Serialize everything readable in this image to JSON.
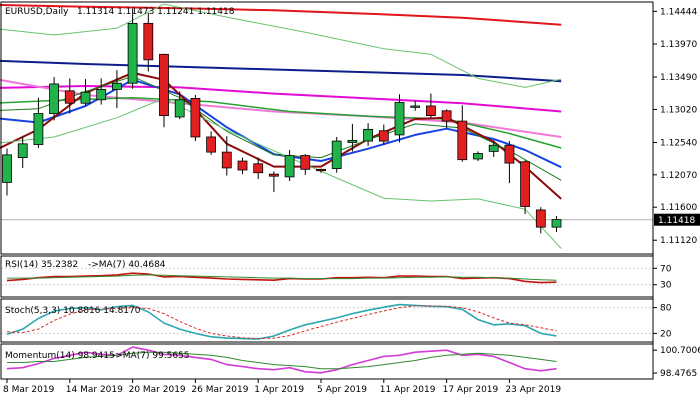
{
  "colors": {
    "bull": "#22b24c",
    "bear": "#e02020",
    "ma_red": "#e3141b",
    "ma_navy": "#0d1f8c",
    "ma_magenta": "#e20bd6",
    "ma_pink": "#f07ad8",
    "ma_green": "#26a32e",
    "ma_fast_blue": "#1742e6",
    "ma_fast_maroon": "#8b0a0a",
    "ma_short_green": "#1e7a1e",
    "bollinger": "#68c46e",
    "rsi_main": "#c81212",
    "rsi_ma": "#2e8b2e",
    "stoch_main": "#2aa6b0",
    "stoch_signal": "#d63030",
    "mom_main": "#d43ad6",
    "mom_ma": "#2e8b2e",
    "grid": "#cfcfcf",
    "frame": "#000000",
    "price_tag_bg": "#000000",
    "price_tag_fg": "#ffffff"
  },
  "chart_data": [
    {
      "type": "candlestick",
      "header": {
        "symbol": "EURUSD,Daily",
        "ohlc": "1.11314 1.11473 1.11241 1.11418"
      },
      "x_labels": [
        {
          "label": "8 Mar 2019",
          "index": 0
        },
        {
          "label": "14 Mar 2019",
          "index": 4
        },
        {
          "label": "20 Mar 2019",
          "index": 8
        },
        {
          "label": "26 Mar 2019",
          "index": 12
        },
        {
          "label": "1 Apr 2019",
          "index": 16
        },
        {
          "label": "5 Apr 2019",
          "index": 20
        },
        {
          "label": "11 Apr 2019",
          "index": 24
        },
        {
          "label": "17 Apr 2019",
          "index": 28
        },
        {
          "label": "23 Apr 2019",
          "index": 32
        }
      ],
      "y_ticks": [
        "1.14444",
        "1.13970",
        "1.13490",
        "1.13020",
        "1.12540",
        "1.12070",
        "1.11600",
        "1.11120"
      ],
      "ylim": [
        1.1092,
        1.1458
      ],
      "last_price": "1.11418",
      "candles": [
        {
          "o": 1.1196,
          "h": 1.1245,
          "l": 1.1177,
          "c": 1.1236
        },
        {
          "o": 1.1232,
          "h": 1.1262,
          "l": 1.1217,
          "c": 1.1252
        },
        {
          "o": 1.1251,
          "h": 1.1319,
          "l": 1.1246,
          "c": 1.1296
        },
        {
          "o": 1.1296,
          "h": 1.1349,
          "l": 1.1286,
          "c": 1.1339
        },
        {
          "o": 1.1329,
          "h": 1.1347,
          "l": 1.1296,
          "c": 1.1311
        },
        {
          "o": 1.1311,
          "h": 1.1346,
          "l": 1.1307,
          "c": 1.1327
        },
        {
          "o": 1.1316,
          "h": 1.1347,
          "l": 1.1309,
          "c": 1.1331
        },
        {
          "o": 1.1331,
          "h": 1.1359,
          "l": 1.1304,
          "c": 1.134
        },
        {
          "o": 1.134,
          "h": 1.1448,
          "l": 1.1332,
          "c": 1.1427
        },
        {
          "o": 1.1427,
          "h": 1.1442,
          "l": 1.1357,
          "c": 1.1374
        },
        {
          "o": 1.1382,
          "h": 1.1383,
          "l": 1.1276,
          "c": 1.1293
        },
        {
          "o": 1.1291,
          "h": 1.1328,
          "l": 1.1288,
          "c": 1.1316
        },
        {
          "o": 1.1318,
          "h": 1.1323,
          "l": 1.1256,
          "c": 1.1262
        },
        {
          "o": 1.1262,
          "h": 1.127,
          "l": 1.1236,
          "c": 1.124
        },
        {
          "o": 1.124,
          "h": 1.1263,
          "l": 1.1206,
          "c": 1.1217
        },
        {
          "o": 1.1227,
          "h": 1.1232,
          "l": 1.1208,
          "c": 1.1214
        },
        {
          "o": 1.1223,
          "h": 1.1232,
          "l": 1.1201,
          "c": 1.121
        },
        {
          "o": 1.1208,
          "h": 1.1212,
          "l": 1.1182,
          "c": 1.1205
        },
        {
          "o": 1.1204,
          "h": 1.1243,
          "l": 1.1198,
          "c": 1.1235
        },
        {
          "o": 1.1235,
          "h": 1.1237,
          "l": 1.1207,
          "c": 1.1215
        },
        {
          "o": 1.1215,
          "h": 1.1216,
          "l": 1.121,
          "c": 1.1213
        },
        {
          "o": 1.1216,
          "h": 1.1262,
          "l": 1.121,
          "c": 1.1256
        },
        {
          "o": 1.1254,
          "h": 1.1281,
          "l": 1.1241,
          "c": 1.1257
        },
        {
          "o": 1.1256,
          "h": 1.1282,
          "l": 1.1249,
          "c": 1.1273
        },
        {
          "o": 1.1271,
          "h": 1.128,
          "l": 1.1251,
          "c": 1.1256
        },
        {
          "o": 1.1265,
          "h": 1.1324,
          "l": 1.1254,
          "c": 1.1312
        },
        {
          "o": 1.1305,
          "h": 1.1314,
          "l": 1.13,
          "c": 1.1307
        },
        {
          "o": 1.1307,
          "h": 1.1325,
          "l": 1.129,
          "c": 1.1293
        },
        {
          "o": 1.13,
          "h": 1.1302,
          "l": 1.1275,
          "c": 1.1285
        },
        {
          "o": 1.1285,
          "h": 1.1308,
          "l": 1.1226,
          "c": 1.1229
        },
        {
          "o": 1.123,
          "h": 1.1241,
          "l": 1.1227,
          "c": 1.1238
        },
        {
          "o": 1.1241,
          "h": 1.1257,
          "l": 1.1233,
          "c": 1.125
        },
        {
          "o": 1.125,
          "h": 1.1256,
          "l": 1.1195,
          "c": 1.1224
        },
        {
          "o": 1.1226,
          "h": 1.1228,
          "l": 1.115,
          "c": 1.1161
        },
        {
          "o": 1.1156,
          "h": 1.116,
          "l": 1.1122,
          "c": 1.1131
        },
        {
          "o": 1.1131,
          "h": 1.1147,
          "l": 1.1124,
          "c": 1.1142
        }
      ],
      "moving_averages": [
        {
          "color_key": "ma_red",
          "width": 2,
          "points": [
            [
              -1,
              1.1454
            ],
            [
              5,
              1.1451
            ],
            [
              11,
              1.1449
            ],
            [
              17,
              1.1446
            ],
            [
              23,
              1.1441
            ],
            [
              29,
              1.1435
            ],
            [
              35.3,
              1.1425
            ]
          ]
        },
        {
          "color_key": "ma_navy",
          "width": 2,
          "points": [
            [
              -1,
              1.1373
            ],
            [
              5,
              1.1368
            ],
            [
              11,
              1.1364
            ],
            [
              17,
              1.136
            ],
            [
              23,
              1.1356
            ],
            [
              29,
              1.1352
            ],
            [
              35.3,
              1.1343
            ]
          ]
        },
        {
          "color_key": "ma_magenta",
          "width": 2,
          "points": [
            [
              -1,
              1.1333
            ],
            [
              5,
              1.1336
            ],
            [
              11,
              1.1334
            ],
            [
              17,
              1.1325
            ],
            [
              23,
              1.1318
            ],
            [
              29,
              1.1311
            ],
            [
              35.3,
              1.1299
            ]
          ]
        },
        {
          "color_key": "ma_pink",
          "width": 2,
          "points": [
            [
              -1,
              1.1347
            ],
            [
              5,
              1.1323
            ],
            [
              11,
              1.1311
            ],
            [
              17,
              1.1299
            ],
            [
              23,
              1.1292
            ],
            [
              29,
              1.1283
            ],
            [
              35.3,
              1.1262
            ]
          ]
        },
        {
          "color_key": "ma_green",
          "width": 1.5,
          "points": [
            [
              -1,
              1.1311
            ],
            [
              3,
              1.1315
            ],
            [
              8,
              1.1319
            ],
            [
              13,
              1.1313
            ],
            [
              18,
              1.1299
            ],
            [
              23,
              1.1292
            ],
            [
              28,
              1.1288
            ],
            [
              32,
              1.1267
            ],
            [
              35.3,
              1.1246
            ]
          ]
        },
        {
          "color_key": "ma_fast_blue",
          "width": 2,
          "points": [
            [
              -1,
              1.129
            ],
            [
              2,
              1.1283
            ],
            [
              5,
              1.1307
            ],
            [
              8,
              1.1345
            ],
            [
              11,
              1.1324
            ],
            [
              14,
              1.1276
            ],
            [
              17,
              1.1237
            ],
            [
              20,
              1.1227
            ],
            [
              23,
              1.1245
            ],
            [
              26,
              1.1265
            ],
            [
              28,
              1.1274
            ],
            [
              31,
              1.1259
            ],
            [
              33,
              1.1243
            ],
            [
              35.3,
              1.1218
            ]
          ]
        },
        {
          "color_key": "ma_fast_maroon",
          "width": 2,
          "points": [
            [
              -1,
              1.124
            ],
            [
              2,
              1.1273
            ],
            [
              5,
              1.1326
            ],
            [
              8,
              1.1355
            ],
            [
              10,
              1.1345
            ],
            [
              12,
              1.1302
            ],
            [
              14,
              1.1252
            ],
            [
              17,
              1.1219
            ],
            [
              20,
              1.1219
            ],
            [
              23,
              1.1259
            ],
            [
              26,
              1.1288
            ],
            [
              28,
              1.129
            ],
            [
              31,
              1.1255
            ],
            [
              33,
              1.1219
            ],
            [
              35.3,
              1.1172
            ]
          ]
        },
        {
          "color_key": "ma_short_green",
          "width": 1,
          "points": [
            [
              -1,
              1.13
            ],
            [
              2,
              1.1303
            ],
            [
              5,
              1.1328
            ],
            [
              8,
              1.135
            ],
            [
              11,
              1.1319
            ],
            [
              14,
              1.127
            ],
            [
              17,
              1.1236
            ],
            [
              20,
              1.1232
            ],
            [
              23,
              1.1258
            ],
            [
              26,
              1.1281
            ],
            [
              29,
              1.1275
            ],
            [
              32,
              1.1242
            ],
            [
              35.3,
              1.1199
            ]
          ]
        },
        {
          "color_key": "bollinger",
          "width": 1,
          "points": [
            [
              -1,
              1.142
            ],
            [
              3,
              1.141
            ],
            [
              7,
              1.142
            ],
            [
              10,
              1.1455
            ],
            [
              14,
              1.1436
            ],
            [
              19,
              1.1414
            ],
            [
              24,
              1.139
            ],
            [
              27,
              1.1382
            ],
            [
              30,
              1.1347
            ],
            [
              33,
              1.1334
            ],
            [
              35.3,
              1.1346
            ]
          ]
        },
        {
          "color_key": "bollinger",
          "width": 1,
          "points": [
            [
              -1,
              1.1252
            ],
            [
              3,
              1.1262
            ],
            [
              7,
              1.129
            ],
            [
              10,
              1.1318
            ],
            [
              14,
              1.1272
            ],
            [
              19,
              1.1222
            ],
            [
              24,
              1.1173
            ],
            [
              27,
              1.1169
            ],
            [
              30,
              1.1172
            ],
            [
              33,
              1.1157
            ],
            [
              35.3,
              1.11
            ]
          ]
        }
      ]
    },
    {
      "type": "line",
      "header": {
        "name": "RSI(14) 35.2382",
        "ma": "->MA(7) 40.4684"
      },
      "y_ticks": [
        "70",
        "30"
      ],
      "ylim": [
        0,
        100
      ],
      "levels": [
        70,
        30
      ],
      "series": [
        {
          "color_key": "rsi_main",
          "values": [
            40,
            43,
            47,
            50,
            50,
            51,
            52,
            54,
            58,
            56,
            49,
            50,
            48,
            46,
            44,
            43,
            42,
            41,
            45,
            44,
            44,
            47,
            47,
            48,
            47,
            51,
            51,
            50,
            50,
            45,
            46,
            47,
            45,
            38,
            35,
            36
          ]
        },
        {
          "color_key": "rsi_ma",
          "values": [
            46,
            46,
            46,
            47,
            48,
            49,
            50,
            51,
            53,
            54,
            53,
            52,
            51,
            50,
            49,
            48,
            47,
            46,
            46,
            45,
            45,
            45,
            45,
            46,
            46,
            47,
            48,
            48,
            49,
            48,
            48,
            47,
            46,
            44,
            42,
            41
          ]
        }
      ]
    },
    {
      "type": "line",
      "header": {
        "name": "Stoch(5,3,3) 10.8816 14.8170"
      },
      "y_ticks": [
        "80",
        "20"
      ],
      "ylim": [
        0,
        100
      ],
      "levels": [
        80,
        20
      ],
      "series": [
        {
          "color_key": "stoch_main",
          "values": [
            18,
            30,
            55,
            72,
            78,
            80,
            75,
            82,
            85,
            70,
            44,
            30,
            20,
            12,
            9,
            8,
            7,
            14,
            28,
            40,
            48,
            56,
            66,
            74,
            81,
            87,
            85,
            83,
            82,
            76,
            52,
            40,
            42,
            38,
            20,
            14
          ]
        },
        {
          "color_key": "stoch_signal",
          "values": [
            24,
            22,
            30,
            50,
            65,
            75,
            77,
            78,
            80,
            78,
            66,
            48,
            32,
            20,
            14,
            10,
            8,
            9,
            15,
            26,
            36,
            46,
            55,
            64,
            72,
            80,
            84,
            84,
            83,
            80,
            70,
            56,
            44,
            40,
            33,
            26
          ]
        }
      ]
    },
    {
      "type": "line",
      "header": {
        "name": "Momentum(14) 98.9415",
        "ma": "->MA(7) 99.5655"
      },
      "y_ticks": [
        "100.7006",
        "98.4765"
      ],
      "ylim": [
        97.9,
        101.3
      ],
      "series": [
        {
          "color_key": "mom_main",
          "values": [
            98.9,
            99.0,
            99.4,
            99.9,
            100.2,
            100.5,
            100.3,
            100.2,
            101.0,
            100.7,
            100.3,
            100.2,
            100.0,
            99.8,
            99.3,
            99.1,
            98.9,
            98.8,
            99.0,
            98.6,
            98.5,
            98.8,
            99.3,
            99.7,
            100.1,
            100.2,
            100.5,
            100.6,
            100.7,
            100.2,
            100.3,
            100.1,
            99.5,
            98.9,
            98.7,
            98.9
          ]
        },
        {
          "color_key": "mom_ma",
          "values": [
            99.5,
            99.5,
            99.6,
            99.6,
            99.8,
            100.0,
            100.1,
            100.2,
            100.4,
            100.5,
            100.5,
            100.4,
            100.3,
            100.2,
            100.0,
            99.7,
            99.5,
            99.3,
            99.2,
            99.1,
            98.9,
            98.9,
            99.0,
            99.1,
            99.3,
            99.5,
            99.7,
            100.0,
            100.2,
            100.3,
            100.4,
            100.3,
            100.2,
            100.0,
            99.8,
            99.6
          ]
        }
      ]
    }
  ]
}
